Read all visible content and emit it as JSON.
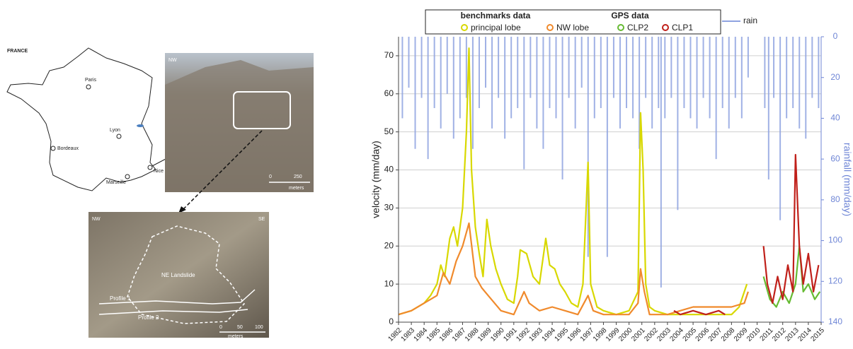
{
  "map": {
    "country": "FRANCE",
    "cities": [
      "Paris",
      "Lyon",
      "Bordeaux",
      "Marseille",
      "Nice"
    ]
  },
  "photo_top": {
    "orientation": "NW",
    "scale": [
      "0",
      "250"
    ],
    "unit": "meters"
  },
  "photo_bottom": {
    "left": "NW",
    "right": "SE",
    "landslide": "NE Landslide",
    "profiles": [
      "Profile 1",
      "Profile 2"
    ],
    "scale": [
      "0",
      "50",
      "100"
    ],
    "unit": "meters"
  },
  "chart_data": {
    "type": "line",
    "y_label": "velocity (mm/day)",
    "y2_label": "rainfall (mm/day)",
    "legend_groups": [
      "benchmarks data",
      "GPS data"
    ],
    "xlim": [
      1982,
      2015
    ],
    "xticks": [
      1982,
      1983,
      1984,
      1985,
      1986,
      1987,
      1988,
      1989,
      1990,
      1991,
      1992,
      1993,
      1994,
      1995,
      1996,
      1997,
      1998,
      1999,
      2000,
      2001,
      2002,
      2003,
      2004,
      2005,
      2006,
      2007,
      2008,
      2009,
      2010,
      2011,
      2012,
      2013,
      2014,
      2015
    ],
    "ylim": [
      0,
      75
    ],
    "yticks": [
      0,
      10,
      20,
      30,
      40,
      50,
      60,
      70
    ],
    "y2lim": [
      0,
      140
    ],
    "y2ticks": [
      0,
      20,
      40,
      60,
      80,
      100,
      120,
      140
    ],
    "y2_inverted": true,
    "grid": true,
    "series": [
      {
        "name": "rain",
        "type": "bar",
        "axis": "y2",
        "color": "#8fa3e0",
        "x": [
          1982.3,
          1982.8,
          1983.3,
          1983.8,
          1984.3,
          1984.8,
          1985.3,
          1985.8,
          1986.3,
          1986.8,
          1987.3,
          1987.8,
          1988.3,
          1988.8,
          1989.3,
          1989.8,
          1990.3,
          1990.8,
          1991.3,
          1991.8,
          1992.3,
          1992.8,
          1993.3,
          1993.8,
          1994.3,
          1994.8,
          1995.3,
          1995.8,
          1996.3,
          1996.8,
          1997.3,
          1997.8,
          1998.3,
          1998.8,
          1999.3,
          1999.8,
          2000.3,
          2000.8,
          2001.3,
          2001.8,
          2002.3,
          2002.5,
          2002.8,
          2003.3,
          2003.8,
          2004.3,
          2004.8,
          2005.3,
          2005.8,
          2006.3,
          2006.8,
          2007.3,
          2007.8,
          2008.3,
          2008.8,
          2009.3,
          2010.6,
          2010.9,
          2011.3,
          2011.8,
          2012.3,
          2012.8,
          2013.3,
          2013.8,
          2014.3,
          2014.8
        ],
        "values": [
          40,
          25,
          55,
          30,
          60,
          35,
          45,
          28,
          50,
          40,
          30,
          55,
          35,
          25,
          45,
          30,
          50,
          40,
          35,
          65,
          30,
          45,
          55,
          35,
          40,
          70,
          30,
          45,
          25,
          108,
          40,
          35,
          108,
          30,
          45,
          35,
          40,
          55,
          30,
          45,
          35,
          123,
          40,
          30,
          85,
          35,
          40,
          45,
          30,
          40,
          60,
          35,
          45,
          30,
          40,
          20,
          35,
          70,
          30,
          90,
          40,
          35,
          45,
          50,
          30,
          35
        ]
      },
      {
        "name": "principal lobe",
        "color": "#d8d800",
        "x": [
          1982,
          1983,
          1984,
          1984.5,
          1985,
          1985.3,
          1985.6,
          1986,
          1986.3,
          1986.6,
          1987,
          1987.3,
          1987.5,
          1987.7,
          1988,
          1988.3,
          1988.6,
          1988.9,
          1989.2,
          1989.6,
          1990,
          1990.5,
          1991,
          1991.3,
          1991.5,
          1992,
          1992.5,
          1993,
          1993.5,
          1993.8,
          1994.2,
          1994.6,
          1995,
          1995.5,
          1996,
          1996.4,
          1996.8,
          1997,
          1997.5,
          1998,
          1999,
          2000,
          2000.7,
          2000.9,
          2001.1,
          2001.3,
          2001.6,
          2002,
          2003,
          2004,
          2005,
          2006,
          2007,
          2008,
          2008.6,
          2009.2
        ],
        "values": [
          2,
          3,
          5,
          7,
          10,
          15,
          12,
          22,
          25,
          20,
          30,
          50,
          72,
          40,
          25,
          18,
          12,
          27,
          20,
          14,
          10,
          6,
          5,
          12,
          19,
          18,
          12,
          10,
          22,
          15,
          14,
          10,
          8,
          5,
          4,
          10,
          42,
          10,
          4,
          3,
          2,
          3,
          8,
          55,
          40,
          10,
          4,
          3,
          2,
          2,
          2,
          2,
          2,
          2,
          4,
          10
        ]
      },
      {
        "name": "NW lobe",
        "color": "#f08a2c",
        "x": [
          1982,
          1983,
          1984,
          1985,
          1985.5,
          1986,
          1986.5,
          1987,
          1987.5,
          1988,
          1988.5,
          1989,
          1990,
          1991,
          1991.8,
          1992.2,
          1993,
          1994,
          1995,
          1996,
          1996.8,
          1997.2,
          1998,
          1999,
          2000,
          2000.7,
          2000.9,
          2001.2,
          2001.6,
          2003,
          2004,
          2005,
          2006,
          2007,
          2008,
          2009,
          2009.3
        ],
        "values": [
          2,
          3,
          5,
          7,
          13,
          10,
          16,
          20,
          26,
          12,
          9,
          7,
          3,
          2,
          8,
          5,
          3,
          4,
          3,
          2,
          7,
          3,
          2,
          2,
          2,
          5,
          14,
          8,
          2,
          2,
          3,
          4,
          4,
          4,
          4,
          5,
          8
        ]
      },
      {
        "name": "CLP2",
        "color": "#66bb33",
        "x": [
          2010.5,
          2011,
          2011.5,
          2012,
          2012.5,
          2013,
          2013.3,
          2013.6,
          2014,
          2014.5,
          2014.9
        ],
        "values": [
          12,
          6,
          4,
          8,
          5,
          10,
          20,
          8,
          10,
          6,
          8
        ]
      },
      {
        "name": "CLP1",
        "color": "#c0201a",
        "x": [
          2003.5,
          2004,
          2005,
          2006,
          2007,
          2007.5,
          2009,
          2010.5,
          2010.8,
          2011.2,
          2011.6,
          2012,
          2012.4,
          2012.8,
          2013,
          2013.3,
          2013.6,
          2014,
          2014.4,
          2014.8
        ],
        "values": [
          3,
          2,
          3,
          2,
          3,
          2,
          null,
          20,
          10,
          5,
          12,
          6,
          15,
          8,
          44,
          20,
          10,
          18,
          8,
          15
        ]
      }
    ]
  }
}
